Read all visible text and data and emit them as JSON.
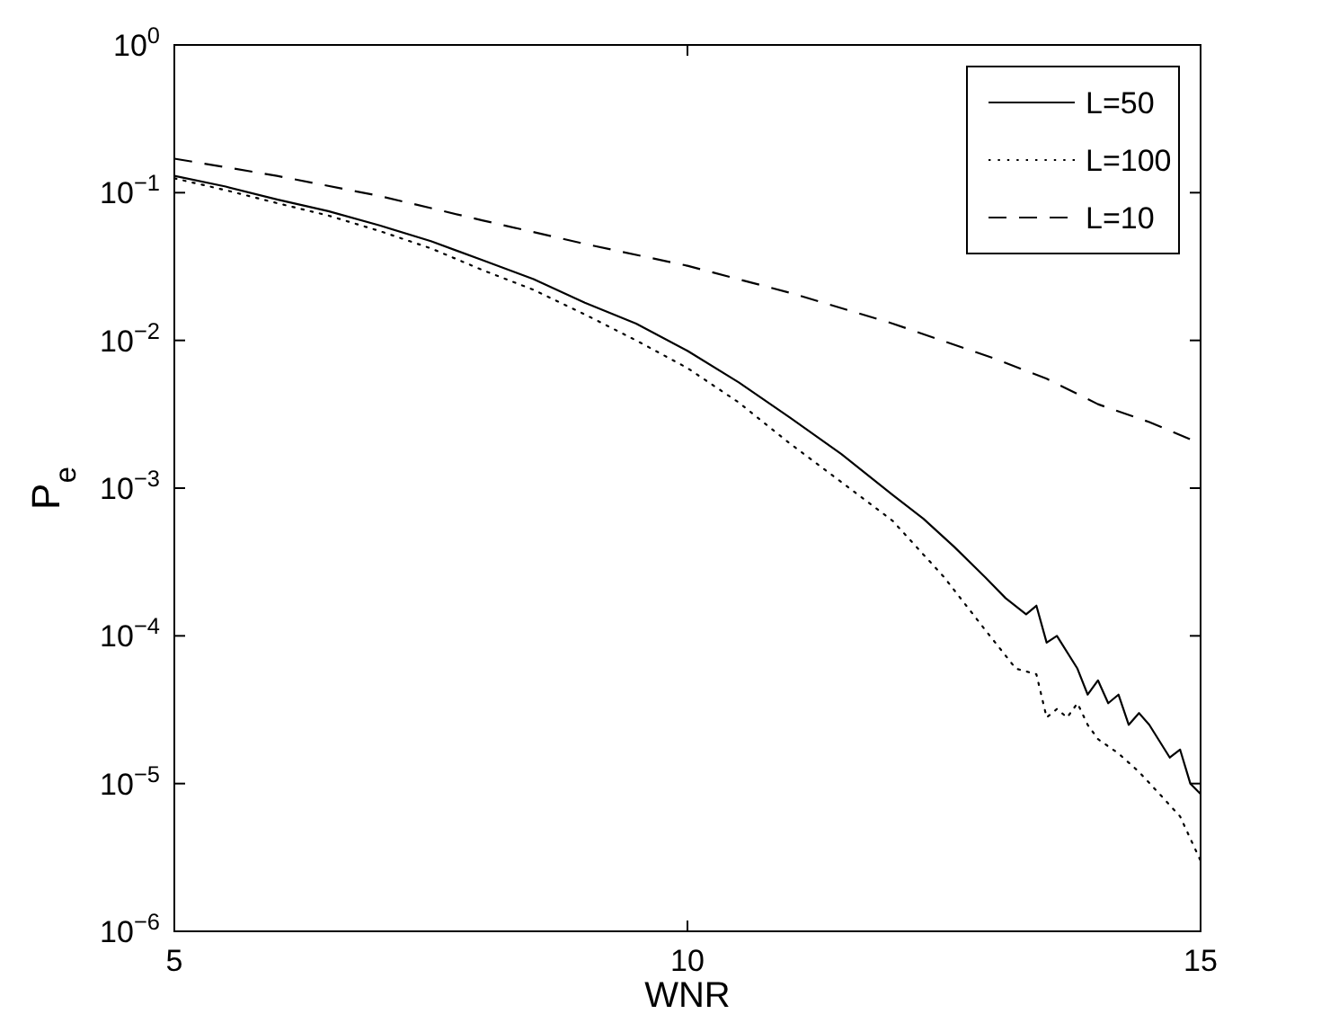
{
  "chart_data": {
    "type": "line",
    "xlabel": "WNR",
    "ylabel": "P$_{e}$",
    "log": "y",
    "xlim": [
      5,
      15
    ],
    "xticks": [
      5,
      10,
      15
    ],
    "ylim": [
      1e-06,
      1
    ],
    "yticks": [
      {
        "value": 1e-06,
        "label": "10$^{−6}$"
      },
      {
        "value": 1e-05,
        "label": "10$^{−5}$"
      },
      {
        "value": 0.0001,
        "label": "10$^{−4}$"
      },
      {
        "value": 0.001,
        "label": "10$^{−3}$"
      },
      {
        "value": 0.01,
        "label": "10$^{−2}$"
      },
      {
        "value": 0.1,
        "label": "10$^{−1}$"
      },
      {
        "value": 1,
        "label": "10$^{0}$"
      }
    ],
    "grid": false,
    "legend": "top right",
    "series": [
      {
        "name": "L=50",
        "color": "#000000",
        "line_style": "solid",
        "x": [
          5,
          5.5,
          6,
          6.5,
          7,
          7.5,
          8,
          8.5,
          9,
          9.5,
          10,
          10.5,
          11,
          11.5,
          12,
          12.3,
          12.6,
          12.9,
          13.1,
          13.3,
          13.4,
          13.5,
          13.6,
          13.8,
          13.9,
          14,
          14.1,
          14.2,
          14.3,
          14.4,
          14.5,
          14.7,
          14.8,
          14.9,
          15
        ],
        "values": [
          0.13,
          0.11,
          0.09,
          0.075,
          0.06,
          0.047,
          0.035,
          0.026,
          0.018,
          0.013,
          0.0085,
          0.0052,
          0.003,
          0.0017,
          0.0009,
          0.00062,
          0.0004,
          0.00025,
          0.00018,
          0.00014,
          0.00016,
          9e-05,
          0.0001,
          6e-05,
          4e-05,
          5e-05,
          3.5e-05,
          4e-05,
          2.5e-05,
          3e-05,
          2.5e-05,
          1.5e-05,
          1.7e-05,
          1e-05,
          8.5e-06
        ]
      },
      {
        "name": "L=100",
        "color": "#000000",
        "line_style": "dotted",
        "x": [
          5,
          5.5,
          6,
          6.5,
          7,
          7.5,
          8,
          8.5,
          9,
          9.5,
          10,
          10.5,
          11,
          11.5,
          12,
          12.5,
          12.9,
          13.2,
          13.4,
          13.5,
          13.6,
          13.7,
          13.8,
          13.9,
          14,
          14.2,
          14.4,
          14.6,
          14.8,
          15
        ],
        "values": [
          0.125,
          0.104,
          0.085,
          0.07,
          0.055,
          0.042,
          0.03,
          0.022,
          0.015,
          0.01,
          0.0065,
          0.0038,
          0.002,
          0.0011,
          0.0006,
          0.00025,
          0.00011,
          6e-05,
          5.5e-05,
          2.8e-05,
          3.2e-05,
          2.8e-05,
          3.5e-05,
          2.5e-05,
          2e-05,
          1.6e-05,
          1.2e-05,
          8.5e-06,
          6e-06,
          3e-06
        ]
      },
      {
        "name": "L=10",
        "color": "#000000",
        "line_style": "dashed",
        "x": [
          5,
          6,
          7,
          8,
          9,
          10,
          11,
          12,
          13,
          13.5,
          14,
          14.5,
          15
        ],
        "values": [
          0.17,
          0.13,
          0.095,
          0.065,
          0.045,
          0.032,
          0.021,
          0.013,
          0.0075,
          0.0055,
          0.0037,
          0.0028,
          0.002
        ]
      }
    ]
  }
}
